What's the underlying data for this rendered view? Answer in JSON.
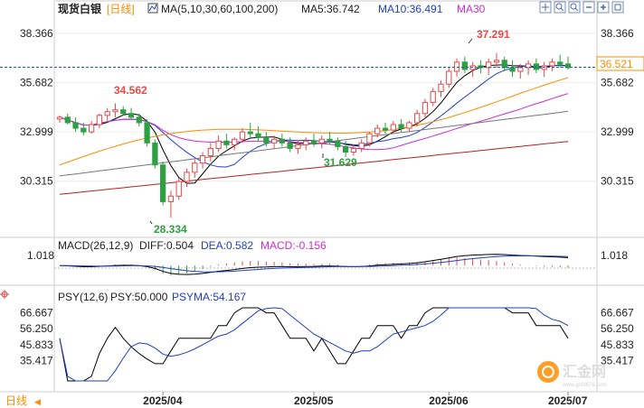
{
  "header": {
    "symbol": "现货白银",
    "period": "[日线]",
    "ma_params": "MA(5,10,30,60,100,200)",
    "ma5": "MA5:36.742",
    "ma10": "MA10:36.491",
    "ma30": "MA30",
    "toolbar_icons": [
      "crosshair-icon",
      "zoom-in-icon",
      "zoom-out-icon",
      "minus-icon",
      "add-icon",
      "expand-icon"
    ]
  },
  "price_axis": {
    "labels": [
      "38.366",
      "35.682",
      "32.999",
      "30.315"
    ],
    "current_price": "36.521",
    "current_price_value": 36.521
  },
  "annotations": {
    "high1": "34.562",
    "high2": "37.291",
    "low1": "28.334",
    "low2": "31.629"
  },
  "macd": {
    "title": "MACD(26,12,9)",
    "dif": "DIFF:0.504",
    "dea": "DEA:0.582",
    "macd": "MACD:-0.156",
    "axis_label": "1.018"
  },
  "psy": {
    "title": "PSY(12,6)",
    "psy": "PSY:50.000",
    "psyma": "PSYMA:54.167",
    "axis_labels": [
      "66.667",
      "56.250",
      "45.833",
      "35.417"
    ]
  },
  "x_axis": {
    "period_tab": "日线",
    "labels": [
      "2025/04",
      "2025/05",
      "2025/06",
      "2025/07"
    ]
  },
  "watermark": {
    "text": "汇金网",
    "url": "www.gold678.com"
  },
  "colors": {
    "up": "#e34a4a",
    "down": "#2ea043",
    "ma5": "#000000",
    "ma10": "#1f3fbf",
    "ma30": "#d02bd0",
    "ma60": "#ff8c00",
    "ma100": "#777777",
    "ma200": "#b22222",
    "accent": "#ff8c00"
  },
  "chart_data": {
    "type": "candlestick",
    "y_range": [
      27.5,
      39.2
    ],
    "candles": [
      [
        33.7,
        33.9,
        33.5,
        33.8
      ],
      [
        33.8,
        34.0,
        33.4,
        33.5
      ],
      [
        33.5,
        33.8,
        33.0,
        33.2
      ],
      [
        33.2,
        33.5,
        32.8,
        33.0
      ],
      [
        33.0,
        33.6,
        32.9,
        33.4
      ],
      [
        33.4,
        34.0,
        33.2,
        33.9
      ],
      [
        33.9,
        34.3,
        33.6,
        34.1
      ],
      [
        34.1,
        34.56,
        33.8,
        34.2
      ],
      [
        34.2,
        34.4,
        33.9,
        34.0
      ],
      [
        34.0,
        34.3,
        33.7,
        33.8
      ],
      [
        33.8,
        34.0,
        33.3,
        33.5
      ],
      [
        33.5,
        33.7,
        32.2,
        32.4
      ],
      [
        32.4,
        32.6,
        31.0,
        31.2
      ],
      [
        31.2,
        31.4,
        29.0,
        29.2
      ],
      [
        29.2,
        29.8,
        28.33,
        29.5
      ],
      [
        29.5,
        30.5,
        29.3,
        30.3
      ],
      [
        30.3,
        31.0,
        30.0,
        30.8
      ],
      [
        30.8,
        31.5,
        30.5,
        31.3
      ],
      [
        31.3,
        31.9,
        31.0,
        31.7
      ],
      [
        31.7,
        32.4,
        31.4,
        32.1
      ],
      [
        32.1,
        32.8,
        31.9,
        32.5
      ],
      [
        32.5,
        32.9,
        32.1,
        32.3
      ],
      [
        32.3,
        32.7,
        32.0,
        32.6
      ],
      [
        32.6,
        33.2,
        32.4,
        33.0
      ],
      [
        33.0,
        33.5,
        32.7,
        32.9
      ],
      [
        32.9,
        33.3,
        32.5,
        32.7
      ],
      [
        32.7,
        33.0,
        32.2,
        32.4
      ],
      [
        32.4,
        32.8,
        32.1,
        32.6
      ],
      [
        32.6,
        32.9,
        32.2,
        32.4
      ],
      [
        32.4,
        32.7,
        31.9,
        32.1
      ],
      [
        32.1,
        32.5,
        31.8,
        32.3
      ],
      [
        32.3,
        32.7,
        32.0,
        32.5
      ],
      [
        32.5,
        32.9,
        32.2,
        32.4
      ],
      [
        32.4,
        32.8,
        32.1,
        32.6
      ],
      [
        32.6,
        33.0,
        32.3,
        32.5
      ],
      [
        32.5,
        32.7,
        32.0,
        32.2
      ],
      [
        32.2,
        32.5,
        31.63,
        31.9
      ],
      [
        31.9,
        32.3,
        31.7,
        32.1
      ],
      [
        32.1,
        32.6,
        31.9,
        32.4
      ],
      [
        32.4,
        33.0,
        32.2,
        32.9
      ],
      [
        32.9,
        33.4,
        32.7,
        33.2
      ],
      [
        33.2,
        33.5,
        32.9,
        33.1
      ],
      [
        33.1,
        33.6,
        32.9,
        33.4
      ],
      [
        33.4,
        33.7,
        33.0,
        33.2
      ],
      [
        33.2,
        33.6,
        33.0,
        33.5
      ],
      [
        33.5,
        34.2,
        33.3,
        34.0
      ],
      [
        34.0,
        34.8,
        33.8,
        34.6
      ],
      [
        34.6,
        35.4,
        34.4,
        35.2
      ],
      [
        35.2,
        35.8,
        34.9,
        35.6
      ],
      [
        35.6,
        36.5,
        35.4,
        36.3
      ],
      [
        36.3,
        37.0,
        36.0,
        36.8
      ],
      [
        36.8,
        37.1,
        36.2,
        36.4
      ],
      [
        36.4,
        36.8,
        36.0,
        36.6
      ],
      [
        36.6,
        36.9,
        36.2,
        36.5
      ],
      [
        36.5,
        37.0,
        36.1,
        36.8
      ],
      [
        36.8,
        37.29,
        36.5,
        36.9
      ],
      [
        36.9,
        37.1,
        36.3,
        36.5
      ],
      [
        36.5,
        36.9,
        36.0,
        36.3
      ],
      [
        36.3,
        36.7,
        35.9,
        36.5
      ],
      [
        36.5,
        36.9,
        36.1,
        36.7
      ],
      [
        36.7,
        37.0,
        36.2,
        36.4
      ],
      [
        36.4,
        36.8,
        36.0,
        36.6
      ],
      [
        36.6,
        37.0,
        36.3,
        36.8
      ],
      [
        36.8,
        37.2,
        36.5,
        36.7
      ],
      [
        36.7,
        37.1,
        36.4,
        36.5
      ]
    ]
  }
}
